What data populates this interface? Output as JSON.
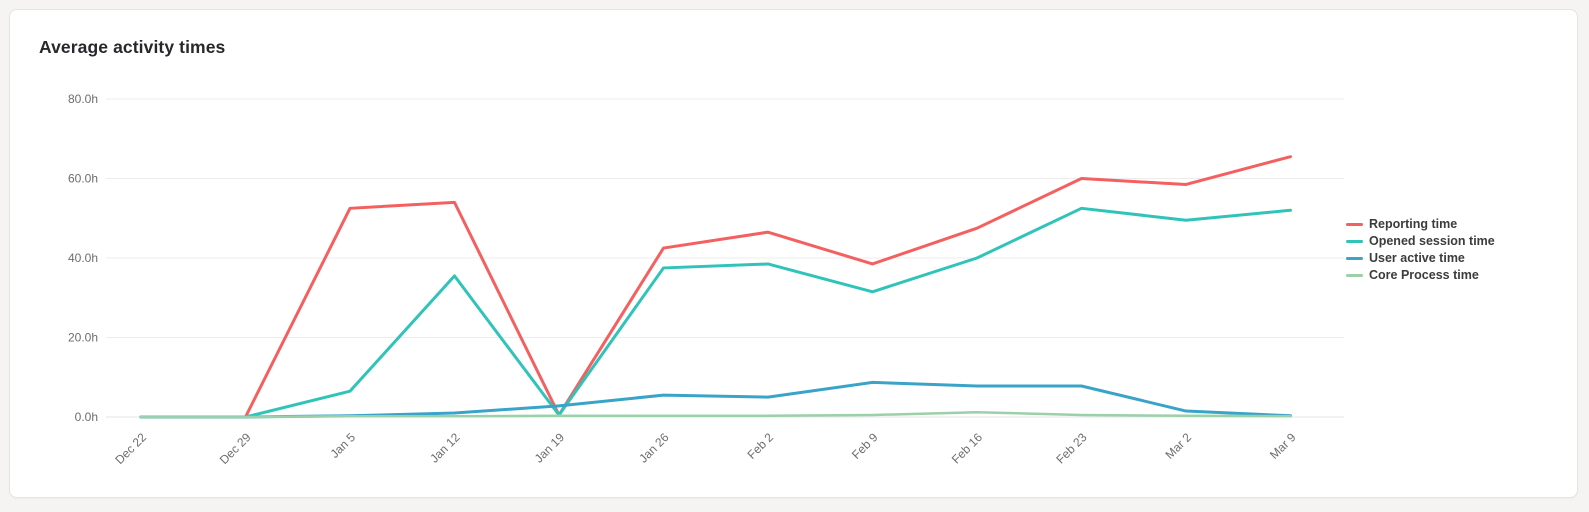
{
  "page": {
    "background": "#f5f4f2"
  },
  "card": {
    "title": "Average activity times",
    "background": "#ffffff",
    "border_color": "#e4e4e4"
  },
  "chart_data": {
    "type": "line",
    "title": "Average activity times",
    "unit": "hours",
    "grid": true,
    "legend_position": "right",
    "xlabel": "",
    "ylabel": "",
    "ylim": [
      0,
      80
    ],
    "y_tick_values": [
      0,
      20,
      40,
      60,
      80
    ],
    "y_ticks": [
      "0.0h",
      "20.0h",
      "40.0h",
      "60.0h",
      "80.0h"
    ],
    "categories": [
      "Dec 22",
      "Dec 29",
      "Jan 5",
      "Jan 12",
      "Jan 19",
      "Jan 26",
      "Feb 2",
      "Feb 9",
      "Feb 16",
      "Feb 23",
      "Mar 2",
      "Mar 9"
    ],
    "series": [
      {
        "name": "Reporting time",
        "color": "#f4605f",
        "values": [
          0,
          0,
          52.5,
          54,
          0.5,
          42.5,
          46.5,
          38.5,
          47.5,
          60,
          58.5,
          65.5
        ]
      },
      {
        "name": "Opened session time",
        "color": "#30c3b9",
        "values": [
          0,
          0,
          6.5,
          35.5,
          0.5,
          37.5,
          38.5,
          31.5,
          40,
          52.5,
          49.5,
          52
        ]
      },
      {
        "name": "User active time",
        "color": "#3aa3c8",
        "values": [
          0,
          0,
          0.3,
          1,
          2.8,
          5.5,
          5,
          8.7,
          7.8,
          7.8,
          1.5,
          0.3
        ]
      },
      {
        "name": "Core Process time",
        "color": "#9bd0a8",
        "values": [
          0,
          0,
          0.2,
          0.2,
          0.3,
          0.3,
          0.3,
          0.5,
          1.2,
          0.5,
          0.3,
          0.2
        ]
      }
    ],
    "colors": {
      "grid_line": "#ececec",
      "zero_line": "#e2e4e8",
      "axis_text": "#6d6d6d"
    }
  }
}
